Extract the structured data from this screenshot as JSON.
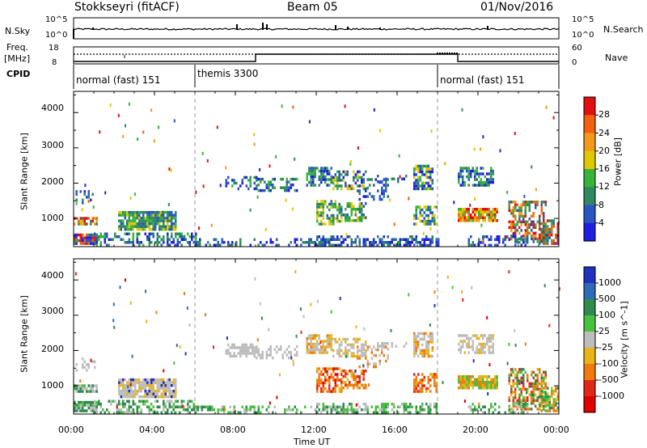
{
  "header": {
    "station": "Stokkseyri (fitACF)",
    "beam": "Beam 05",
    "date": "01/Nov/2016"
  },
  "summary": {
    "nsky_label": "N.Sky",
    "nsky_ticks": [
      "10^5",
      "10^0"
    ],
    "nsearch_label": "N.Search",
    "nsearch_ticks": [
      "10^5",
      "10^0"
    ],
    "freq_label": "Freq.",
    "freq_unit": "[MHz]",
    "freq_ticks": [
      "18",
      "8"
    ],
    "nave_label": "Nave",
    "nave_ticks": [
      "60",
      "0"
    ],
    "cpid_label": "CPID",
    "cpid_segments": [
      {
        "label": "normal (fast) 151",
        "start": 0,
        "end": 6
      },
      {
        "label": "themis 3300",
        "start": 6,
        "end": 18
      },
      {
        "label": "normal (fast) 151",
        "start": 18,
        "end": 24
      }
    ]
  },
  "chart_data": [
    {
      "type": "heatmap",
      "name": "power",
      "ylabel": "Slant Range [km]",
      "yticks": [
        "1000",
        "2000",
        "3000",
        "4000"
      ],
      "ylim": [
        200,
        4600
      ],
      "colorbar_label": "Power [dB]",
      "colorbar_ticks": [
        "4",
        "8",
        "12",
        "16",
        "20",
        "24",
        "28"
      ],
      "colors": [
        "#1f1fe0",
        "#2a56c2",
        "#2e8a5e",
        "#38b43a",
        "#e0c800",
        "#f39a1a",
        "#f26010",
        "#e01010"
      ]
    },
    {
      "type": "heatmap",
      "name": "velocity",
      "ylabel": "Slant Range [km]",
      "yticks": [
        "1000",
        "2000",
        "3000",
        "4000"
      ],
      "ylim": [
        200,
        4600
      ],
      "colorbar_label": "Velocity [m s^-1]",
      "colorbar_ticks": [
        "1000",
        "500",
        "100",
        "25",
        "-25",
        "-100",
        "-500",
        "-1000"
      ],
      "colors": [
        "#2030c0",
        "#2d6bb8",
        "#2e8a4e",
        "#48c040",
        "#bdbdbd",
        "#e8b418",
        "#f07a10",
        "#e02818",
        "#e00000"
      ]
    }
  ],
  "time_axis": {
    "label": "Time UT",
    "ticks": [
      "00:00",
      "04:00",
      "08:00",
      "12:00",
      "16:00",
      "20:00",
      "00:00"
    ]
  }
}
